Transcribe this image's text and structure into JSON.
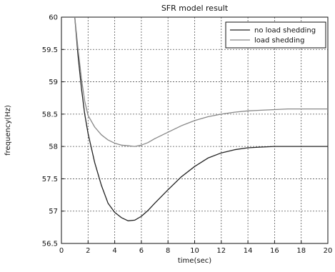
{
  "chart_data": {
    "type": "line",
    "title": "SFR model result",
    "xlabel": "time(sec)",
    "ylabel": "frequency(Hz)",
    "xlim": [
      0,
      20
    ],
    "ylim": [
      56.5,
      60
    ],
    "x_ticks": [
      "0",
      "2",
      "4",
      "6",
      "8",
      "10",
      "12",
      "14",
      "16",
      "18",
      "20"
    ],
    "y_ticks": [
      "56.5",
      "57",
      "57.5",
      "58",
      "58.5",
      "59",
      "59.5",
      "60"
    ],
    "grid": true,
    "legend_position": "top-right",
    "series": [
      {
        "name": "no load shedding",
        "color": "#222222",
        "x": [
          1,
          1.25,
          1.5,
          1.75,
          2,
          2.5,
          3,
          3.5,
          4,
          4.5,
          5,
          5.5,
          6,
          6.5,
          7,
          8,
          9,
          10,
          11,
          12,
          13,
          14,
          15,
          16,
          17,
          18,
          19,
          20
        ],
        "y": [
          60,
          59.4,
          58.9,
          58.5,
          58.2,
          57.75,
          57.4,
          57.12,
          56.98,
          56.9,
          56.85,
          56.86,
          56.92,
          57.01,
          57.12,
          57.33,
          57.53,
          57.69,
          57.82,
          57.9,
          57.95,
          57.98,
          57.99,
          58,
          58,
          58,
          58,
          58
        ]
      },
      {
        "name": "load shedding",
        "color": "#888888",
        "x": [
          1,
          1.25,
          1.5,
          1.75,
          2,
          2.5,
          3,
          3.5,
          4,
          4.5,
          5,
          5.5,
          6,
          6.5,
          7,
          8,
          9,
          10,
          11,
          12,
          13,
          14,
          15,
          16,
          17,
          18,
          19,
          20
        ],
        "y": [
          60,
          59.5,
          59.05,
          58.7,
          58.48,
          58.3,
          58.18,
          58.1,
          58.05,
          58.02,
          58.01,
          58.0,
          58.02,
          58.06,
          58.12,
          58.22,
          58.32,
          58.4,
          58.46,
          58.5,
          58.53,
          58.55,
          58.56,
          58.57,
          58.58,
          58.58,
          58.58,
          58.58
        ]
      }
    ]
  }
}
